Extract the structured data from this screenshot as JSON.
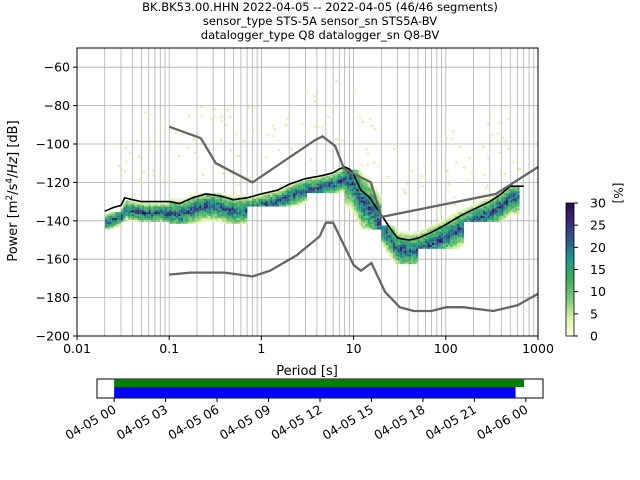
{
  "header": {
    "line1": "BK.BK53.00.HHN   2022-04-05 -- 2022-04-05  (46/46 segments)",
    "line2": "sensor_type STS-5A sensor_sn STS5A-BV",
    "line3": "datalogger_type Q8 datalogger_sn Q8-BV"
  },
  "colorbar": {
    "label": "[%]",
    "ticks": [
      "0",
      "5",
      "10",
      "15",
      "20",
      "25",
      "30"
    ],
    "range": [
      0,
      30
    ],
    "colors": [
      "#ffffe5",
      "#d9f0a3",
      "#78c679",
      "#41ab5d",
      "#1d9a8c",
      "#2c5f8e",
      "#3b2a7a",
      "#2d0a4e"
    ]
  },
  "chart_data": [
    {
      "type": "heatmap",
      "xlabel": "Period [s]",
      "ylabel": "Power [m²/s⁴/Hz] [dB]",
      "x_scale": "log",
      "xlim": [
        0.01,
        1000
      ],
      "ylim": [
        -200,
        -50
      ],
      "x_ticks": [
        "0.01",
        "0.1",
        "1",
        "10",
        "100",
        "1000"
      ],
      "y_ticks": [
        "−200",
        "−180",
        "−160",
        "−140",
        "−120",
        "−100",
        "−80",
        "−60"
      ],
      "grid": true,
      "series": [
        {
          "kind": "mode",
          "color": "#000000",
          "points": [
            [
              0.02,
              -135
            ],
            [
              0.025,
              -133
            ],
            [
              0.03,
              -132
            ],
            [
              0.033,
              -128
            ],
            [
              0.04,
              -129
            ],
            [
              0.05,
              -130
            ],
            [
              0.07,
              -130
            ],
            [
              0.1,
              -130
            ],
            [
              0.13,
              -131
            ],
            [
              0.18,
              -128
            ],
            [
              0.25,
              -126
            ],
            [
              0.35,
              -127
            ],
            [
              0.5,
              -129
            ],
            [
              0.7,
              -128
            ],
            [
              1,
              -126
            ],
            [
              1.5,
              -124
            ],
            [
              2,
              -121
            ],
            [
              3,
              -118
            ],
            [
              4,
              -117
            ],
            [
              5,
              -116
            ],
            [
              6,
              -115
            ],
            [
              7,
              -113
            ],
            [
              8,
              -112
            ],
            [
              9,
              -113
            ],
            [
              10,
              -116
            ],
            [
              12,
              -124
            ],
            [
              15,
              -128
            ],
            [
              20,
              -137
            ],
            [
              25,
              -144
            ],
            [
              30,
              -149
            ],
            [
              40,
              -150
            ],
            [
              50,
              -149
            ],
            [
              70,
              -146
            ],
            [
              100,
              -142
            ],
            [
              150,
              -137
            ],
            [
              200,
              -134
            ],
            [
              300,
              -130
            ],
            [
              400,
              -126
            ],
            [
              500,
              -122
            ],
            [
              700,
              -122
            ]
          ]
        },
        {
          "kind": "NHNM",
          "color": "#666666",
          "points": [
            [
              0.1,
              -91
            ],
            [
              0.22,
              -97
            ],
            [
              0.32,
              -110
            ],
            [
              0.8,
              -120
            ],
            [
              3.8,
              -98
            ],
            [
              4.6,
              -96
            ],
            [
              6.3,
              -101
            ],
            [
              7.9,
              -113
            ],
            [
              15.4,
              -120
            ],
            [
              20,
              -138
            ],
            [
              350,
              -126
            ],
            [
              1000,
              -112
            ]
          ]
        },
        {
          "kind": "NLNM",
          "color": "#666666",
          "points": [
            [
              0.1,
              -168
            ],
            [
              0.17,
              -167
            ],
            [
              0.4,
              -167
            ],
            [
              0.8,
              -169
            ],
            [
              1.24,
              -166
            ],
            [
              2.4,
              -158
            ],
            [
              4.3,
              -148
            ],
            [
              5,
              -141
            ],
            [
              6,
              -141
            ],
            [
              10,
              -163
            ],
            [
              12,
              -166
            ],
            [
              15.6,
              -162
            ],
            [
              21.9,
              -177
            ],
            [
              31.6,
              -185
            ],
            [
              45,
              -187
            ],
            [
              70,
              -187
            ],
            [
              101,
              -185
            ],
            [
              154,
              -185
            ],
            [
              328,
              -187
            ],
            [
              600,
              -184
            ],
            [
              1000,
              -178
            ]
          ]
        }
      ],
      "psd_bands": [
        {
          "start": 0.019,
          "end": 0.03,
          "low": -144,
          "high": -136
        },
        {
          "start": 0.03,
          "end": 0.1,
          "low": -140,
          "high": -130
        },
        {
          "start": 0.1,
          "end": 0.7,
          "low": -141,
          "high": -126
        },
        {
          "start": 0.7,
          "end": 3,
          "low": -132,
          "high": -120
        },
        {
          "start": 3,
          "end": 8,
          "low": -125,
          "high": -113
        },
        {
          "start": 8,
          "end": 20,
          "low": -144,
          "high": -114
        },
        {
          "start": 20,
          "end": 50,
          "low": -162,
          "high": -143
        },
        {
          "start": 50,
          "end": 150,
          "low": -154,
          "high": -135
        },
        {
          "start": 150,
          "end": 600,
          "low": -140,
          "high": -123
        }
      ]
    },
    {
      "type": "bar",
      "description": "data coverage timeline",
      "x_ticks": [
        "04-05 00",
        "04-05 03",
        "04-05 06",
        "04-05 09",
        "04-05 12",
        "04-05 15",
        "04-05 18",
        "04-05 21",
        "04-06 00"
      ],
      "x_range_hours": [
        -1,
        25
      ],
      "series": [
        {
          "color": "#008000",
          "start_hour": 0,
          "end_hour": 23.9
        },
        {
          "color": "#0000ff",
          "start_hour": 0,
          "end_hour": 23.4
        }
      ]
    }
  ]
}
